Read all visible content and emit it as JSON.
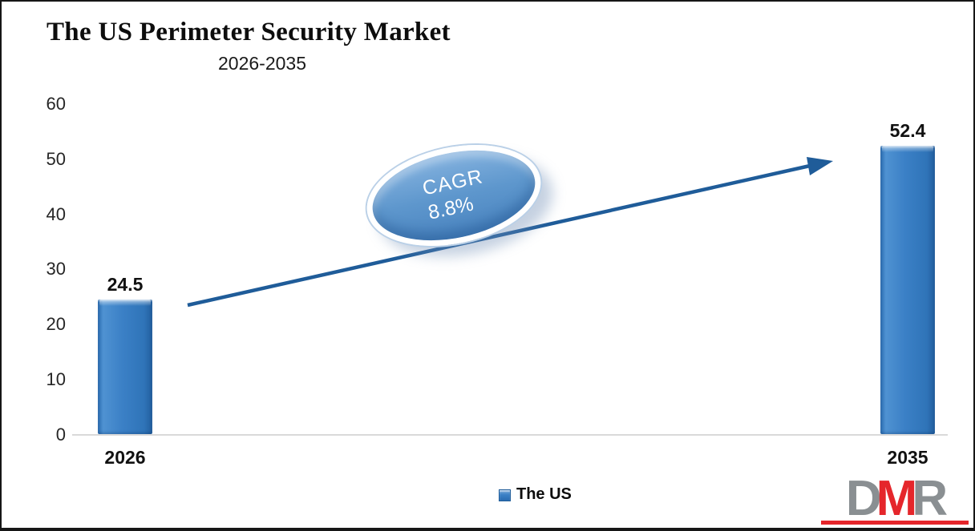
{
  "header": {
    "title": "The US Perimeter Security Market",
    "subtitle": "2026-2035"
  },
  "chart_data": {
    "type": "bar",
    "title": "The US Perimeter Security Market",
    "subtitle": "2026-2035",
    "categories": [
      "2026",
      "2035"
    ],
    "values": [
      24.5,
      52.4
    ],
    "series_name": "The US",
    "xlabel": "",
    "ylabel": "",
    "ylim": [
      0,
      60
    ],
    "yticks": [
      60,
      50,
      40,
      30,
      20,
      10,
      0
    ],
    "grid": false,
    "legend_position": "bottom",
    "bar_color": "#2E76BA",
    "arrow_color": "#1F5C99",
    "annotation": {
      "line1": "CAGR",
      "line2": "8.8%"
    }
  },
  "legend": {
    "label": "The US"
  },
  "logo": {
    "d": "D",
    "m": "M",
    "r": "R"
  }
}
